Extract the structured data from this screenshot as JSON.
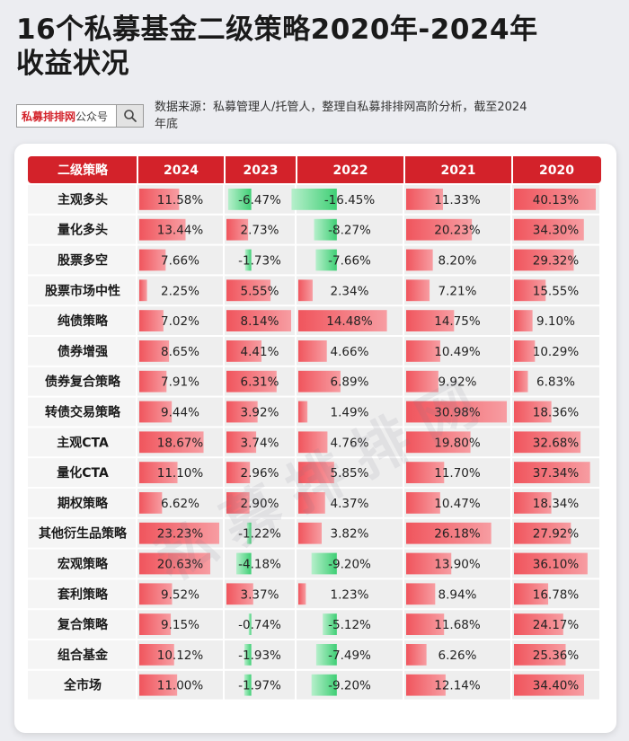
{
  "header": {
    "title": "16个私募基金二级策略2020年-2024年收益状况",
    "search_brand": "私募排排网",
    "search_suffix": "公众号",
    "search_icon": "search-icon",
    "source": "数据来源：私募管理人/托管人，整理自私募排排网高阶分析，截至2024年底"
  },
  "watermark": "私募排排网",
  "colors": {
    "header_red": "#d3222a",
    "positive_bar": "#f0555d",
    "negative_bar": "#3fcf75",
    "label_cell": "#f5f5f5",
    "data_cell": "#eeeeee"
  },
  "chart_data": {
    "type": "table",
    "corner_label": "二级策略",
    "columns": [
      "2024",
      "2023",
      "2022",
      "2021",
      "2020"
    ],
    "rows": [
      {
        "name": "主观多头",
        "values": [
          11.58,
          -6.47,
          -16.45,
          11.33,
          40.13
        ]
      },
      {
        "name": "量化多头",
        "values": [
          13.44,
          2.73,
          -8.27,
          20.23,
          34.3
        ]
      },
      {
        "name": "股票多空",
        "values": [
          7.66,
          -1.73,
          -7.66,
          8.2,
          29.32
        ]
      },
      {
        "name": "股票市场中性",
        "values": [
          2.25,
          5.55,
          2.34,
          7.21,
          15.55
        ]
      },
      {
        "name": "纯债策略",
        "values": [
          7.02,
          8.14,
          14.48,
          14.75,
          9.1
        ]
      },
      {
        "name": "债券增强",
        "values": [
          8.65,
          4.41,
          4.66,
          10.49,
          10.29
        ]
      },
      {
        "name": "债券复合策略",
        "values": [
          7.91,
          6.31,
          6.89,
          9.92,
          6.83
        ]
      },
      {
        "name": "转债交易策略",
        "values": [
          9.44,
          3.92,
          1.49,
          30.98,
          18.36
        ]
      },
      {
        "name": "主观CTA",
        "values": [
          18.67,
          3.74,
          4.76,
          19.8,
          32.68
        ]
      },
      {
        "name": "量化CTA",
        "values": [
          11.1,
          2.96,
          5.85,
          11.7,
          37.34
        ]
      },
      {
        "name": "期权策略",
        "values": [
          6.62,
          2.9,
          4.37,
          10.47,
          18.34
        ]
      },
      {
        "name": "其他衍生品策略",
        "values": [
          23.23,
          -1.22,
          3.82,
          26.18,
          27.92
        ]
      },
      {
        "name": "宏观策略",
        "values": [
          20.63,
          -4.18,
          -9.2,
          13.9,
          36.1
        ]
      },
      {
        "name": "套利策略",
        "values": [
          9.52,
          3.37,
          1.23,
          8.94,
          16.78
        ]
      },
      {
        "name": "复合策略",
        "values": [
          9.15,
          -0.74,
          -5.12,
          11.68,
          24.17
        ]
      },
      {
        "name": "组合基金",
        "values": [
          10.12,
          -1.93,
          -7.49,
          6.26,
          25.36
        ]
      },
      {
        "name": "全市场",
        "values": [
          11.0,
          -1.97,
          -9.2,
          12.14,
          34.4
        ]
      }
    ]
  }
}
